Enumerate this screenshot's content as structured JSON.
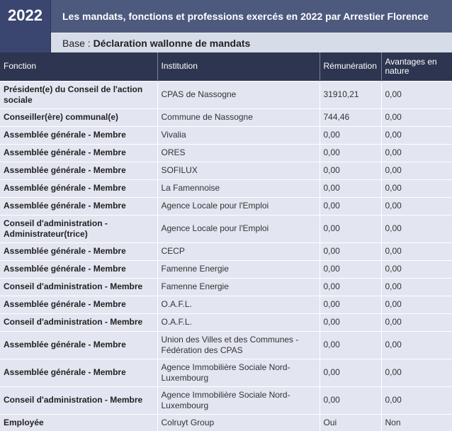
{
  "header": {
    "year": "2022",
    "title": "Les mandats, fonctions et professions exercés en 2022 par Arrestier Florence",
    "base_label": "Base :",
    "base_value": "Déclaration wallonne de mandats"
  },
  "table": {
    "columns": [
      "Fonction",
      "Institution",
      "Rémunération",
      "Avantages en nature"
    ],
    "rows": [
      {
        "fonction": "Président(e) du Conseil de l'action sociale",
        "institution": "CPAS de Nassogne",
        "remuneration": "31910,21",
        "avantages": "0,00",
        "tall": true
      },
      {
        "fonction": "Conseiller(ère) communal(e)",
        "institution": "Commune de Nassogne",
        "remuneration": "744,46",
        "avantages": "0,00",
        "tall": false
      },
      {
        "fonction": "Assemblée générale - Membre",
        "institution": "Vivalia",
        "remuneration": "0,00",
        "avantages": "0,00",
        "tall": false
      },
      {
        "fonction": "Assemblée générale - Membre",
        "institution": "ORES",
        "remuneration": "0,00",
        "avantages": "0,00",
        "tall": false
      },
      {
        "fonction": "Assemblée générale - Membre",
        "institution": "SOFILUX",
        "remuneration": "0,00",
        "avantages": "0,00",
        "tall": false
      },
      {
        "fonction": "Assemblée générale - Membre",
        "institution": "La Famennoise",
        "remuneration": "0,00",
        "avantages": "0,00",
        "tall": false
      },
      {
        "fonction": "Assemblée générale - Membre",
        "institution": "Agence Locale pour l'Emploi",
        "remuneration": "0,00",
        "avantages": "0,00",
        "tall": false
      },
      {
        "fonction": "Conseil d'administration - Administrateur(trice)",
        "institution": "Agence Locale pour l'Emploi",
        "remuneration": "0,00",
        "avantages": "0,00",
        "tall": true
      },
      {
        "fonction": "Assemblée générale - Membre",
        "institution": "CECP",
        "remuneration": "0,00",
        "avantages": "0,00",
        "tall": false
      },
      {
        "fonction": "Assemblée générale - Membre",
        "institution": "Famenne Energie",
        "remuneration": "0,00",
        "avantages": "0,00",
        "tall": false
      },
      {
        "fonction": "Conseil d'administration - Membre",
        "institution": "Famenne Energie",
        "remuneration": "0,00",
        "avantages": "0,00",
        "tall": false
      },
      {
        "fonction": "Assemblée générale - Membre",
        "institution": "O.A.F.L.",
        "remuneration": "0,00",
        "avantages": "0,00",
        "tall": false
      },
      {
        "fonction": "Conseil d'administration - Membre",
        "institution": "O.A.F.L.",
        "remuneration": "0,00",
        "avantages": "0,00",
        "tall": false
      },
      {
        "fonction": "Assemblée générale - Membre",
        "institution": "Union des Villes et des Communes - Fédération des CPAS",
        "remuneration": "0,00",
        "avantages": "0,00",
        "tall": true
      },
      {
        "fonction": "Assemblée générale - Membre",
        "institution": "Agence Immobilière Sociale Nord-Luxembourg",
        "remuneration": "0,00",
        "avantages": "0,00",
        "tall": true
      },
      {
        "fonction": "Conseil d'administration - Membre",
        "institution": "Agence Immobilière Sociale Nord-Luxembourg",
        "remuneration": "0,00",
        "avantages": "0,00",
        "tall": true
      },
      {
        "fonction": "Employée",
        "institution": "Colruyt Group",
        "remuneration": "Oui",
        "avantages": "Non",
        "tall": false
      }
    ]
  }
}
